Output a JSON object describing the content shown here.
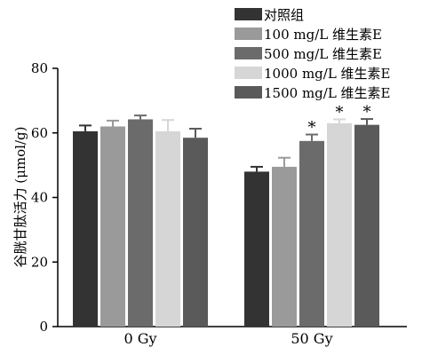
{
  "chart_data": {
    "type": "bar",
    "title": "",
    "ylabel": "谷胱甘肽活力 (μmol/g)",
    "xlabel": "",
    "ylim": [
      0,
      80
    ],
    "yticks": [
      "0",
      "20",
      "40",
      "60",
      "80"
    ],
    "categories": [
      "0 Gy",
      "50 Gy"
    ],
    "legend_position": "top-right",
    "grid": false,
    "series": [
      {
        "name": "对照组",
        "color": "#333333",
        "values": [
          60.5,
          48.0
        ],
        "errors": [
          1.8,
          1.5
        ],
        "significant": [
          false,
          false
        ]
      },
      {
        "name": "100 mg/L 维生素E",
        "color": "#9a9a9a",
        "values": [
          62.0,
          49.5
        ],
        "errors": [
          1.8,
          2.8
        ],
        "significant": [
          false,
          false
        ]
      },
      {
        "name": "500 mg/L 维生素E",
        "color": "#6b6b6b",
        "values": [
          64.2,
          57.5
        ],
        "errors": [
          1.2,
          2.0
        ],
        "significant": [
          false,
          true
        ]
      },
      {
        "name": "1000 mg/L 维生素E",
        "color": "#d6d6d6",
        "values": [
          60.5,
          63.0
        ],
        "errors": [
          3.5,
          1.2
        ],
        "significant": [
          false,
          true
        ]
      },
      {
        "name": "1500 mg/L 维生素E",
        "color": "#5a5a5a",
        "values": [
          58.5,
          62.5
        ],
        "errors": [
          2.8,
          1.8
        ],
        "significant": [
          false,
          true
        ]
      }
    ],
    "significance_marker": "*"
  }
}
